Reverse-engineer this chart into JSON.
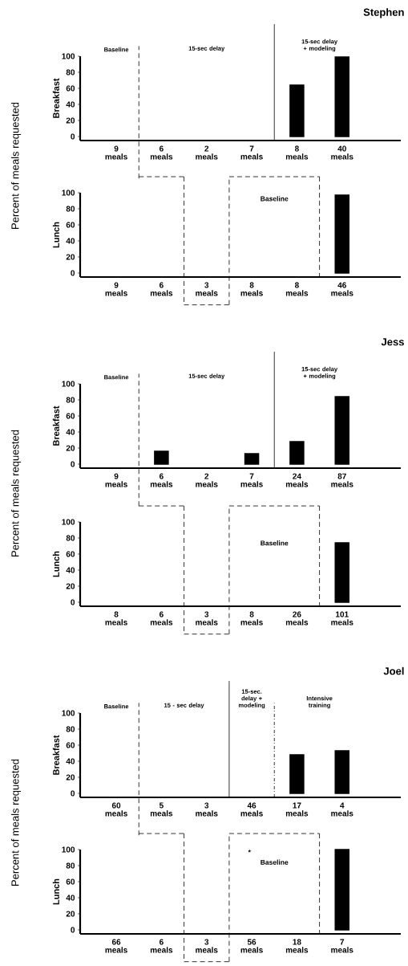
{
  "chart_data": [
    {
      "type": "bar",
      "title": "Stephen",
      "ylabel": "Breakfast",
      "categories": [
        "9 meals",
        "6 meals",
        "2 meals",
        "7 meals",
        "8 meals",
        "40 meals"
      ],
      "values": [
        0,
        0,
        0,
        0,
        64,
        99
      ],
      "color": "#000000",
      "ylim": [
        -5,
        100
      ],
      "yticks": [
        0,
        20,
        40,
        60,
        80,
        100
      ],
      "annotations": [
        "Percent of meals requested",
        "Baseline",
        "15-sec delay",
        "15-sec delay + modeling"
      ]
    },
    {
      "type": "bar",
      "ylabel": "Lunch",
      "categories": [
        "9 meals",
        "6 meals",
        "3 meals",
        "8 meals",
        "8 meals",
        "46 meals"
      ],
      "values": [
        0,
        0,
        0,
        0,
        0,
        97
      ],
      "color": "#000000",
      "ylim": [
        -5,
        100
      ],
      "yticks": [
        0,
        20,
        40,
        60,
        80,
        100
      ],
      "annotations": [
        "Baseline"
      ]
    },
    {
      "type": "bar",
      "title": "Jess",
      "ylabel": "Breakfast",
      "categories": [
        "9 meals",
        "6 meals",
        "2 meals",
        "7 meals",
        "24 meals",
        "87 meals"
      ],
      "values": [
        0,
        16,
        0,
        13,
        28,
        84
      ],
      "color": "#000000",
      "ylim": [
        -5,
        100
      ],
      "yticks": [
        0,
        20,
        40,
        60,
        80,
        100
      ],
      "annotations": [
        "Percent of meals requested",
        "Baseline",
        "15-sec delay",
        "15-sec delay + modeling"
      ]
    },
    {
      "type": "bar",
      "ylabel": "Lunch",
      "categories": [
        "8 meals",
        "6 meals",
        "3 meals",
        "8 meals",
        "26 meals",
        "101 meals"
      ],
      "values": [
        0,
        0,
        0,
        0,
        0,
        74
      ],
      "color": "#000000",
      "ylim": [
        -5,
        100
      ],
      "yticks": [
        0,
        20,
        40,
        60,
        80,
        100
      ],
      "annotations": [
        "Baseline"
      ]
    },
    {
      "type": "bar",
      "title": "Joel",
      "ylabel": "Breakfast",
      "categories": [
        "60 meals",
        "5 meals",
        "3 meals",
        "46 meals",
        "17 meals",
        "4 meals"
      ],
      "values": [
        0,
        0,
        0,
        0,
        48,
        53
      ],
      "color": "#000000",
      "ylim": [
        -5,
        100
      ],
      "yticks": [
        0,
        20,
        40,
        60,
        80,
        100
      ],
      "annotations": [
        "Percent of meals requested",
        "Baseline",
        "15 - sec delay",
        "15-sec. delay + modeling",
        "Intensive training"
      ]
    },
    {
      "type": "bar",
      "ylabel": "Lunch",
      "categories": [
        "66 meals",
        "6 meals",
        "3 meals",
        "56 meals",
        "18 meals",
        "7 meals"
      ],
      "values": [
        0,
        0,
        0,
        0,
        0,
        100
      ],
      "color": "#000000",
      "ylim": [
        -5,
        100
      ],
      "yticks": [
        0,
        20,
        40,
        60,
        80,
        100
      ],
      "annotations": [
        "*",
        "Baseline"
      ]
    }
  ]
}
